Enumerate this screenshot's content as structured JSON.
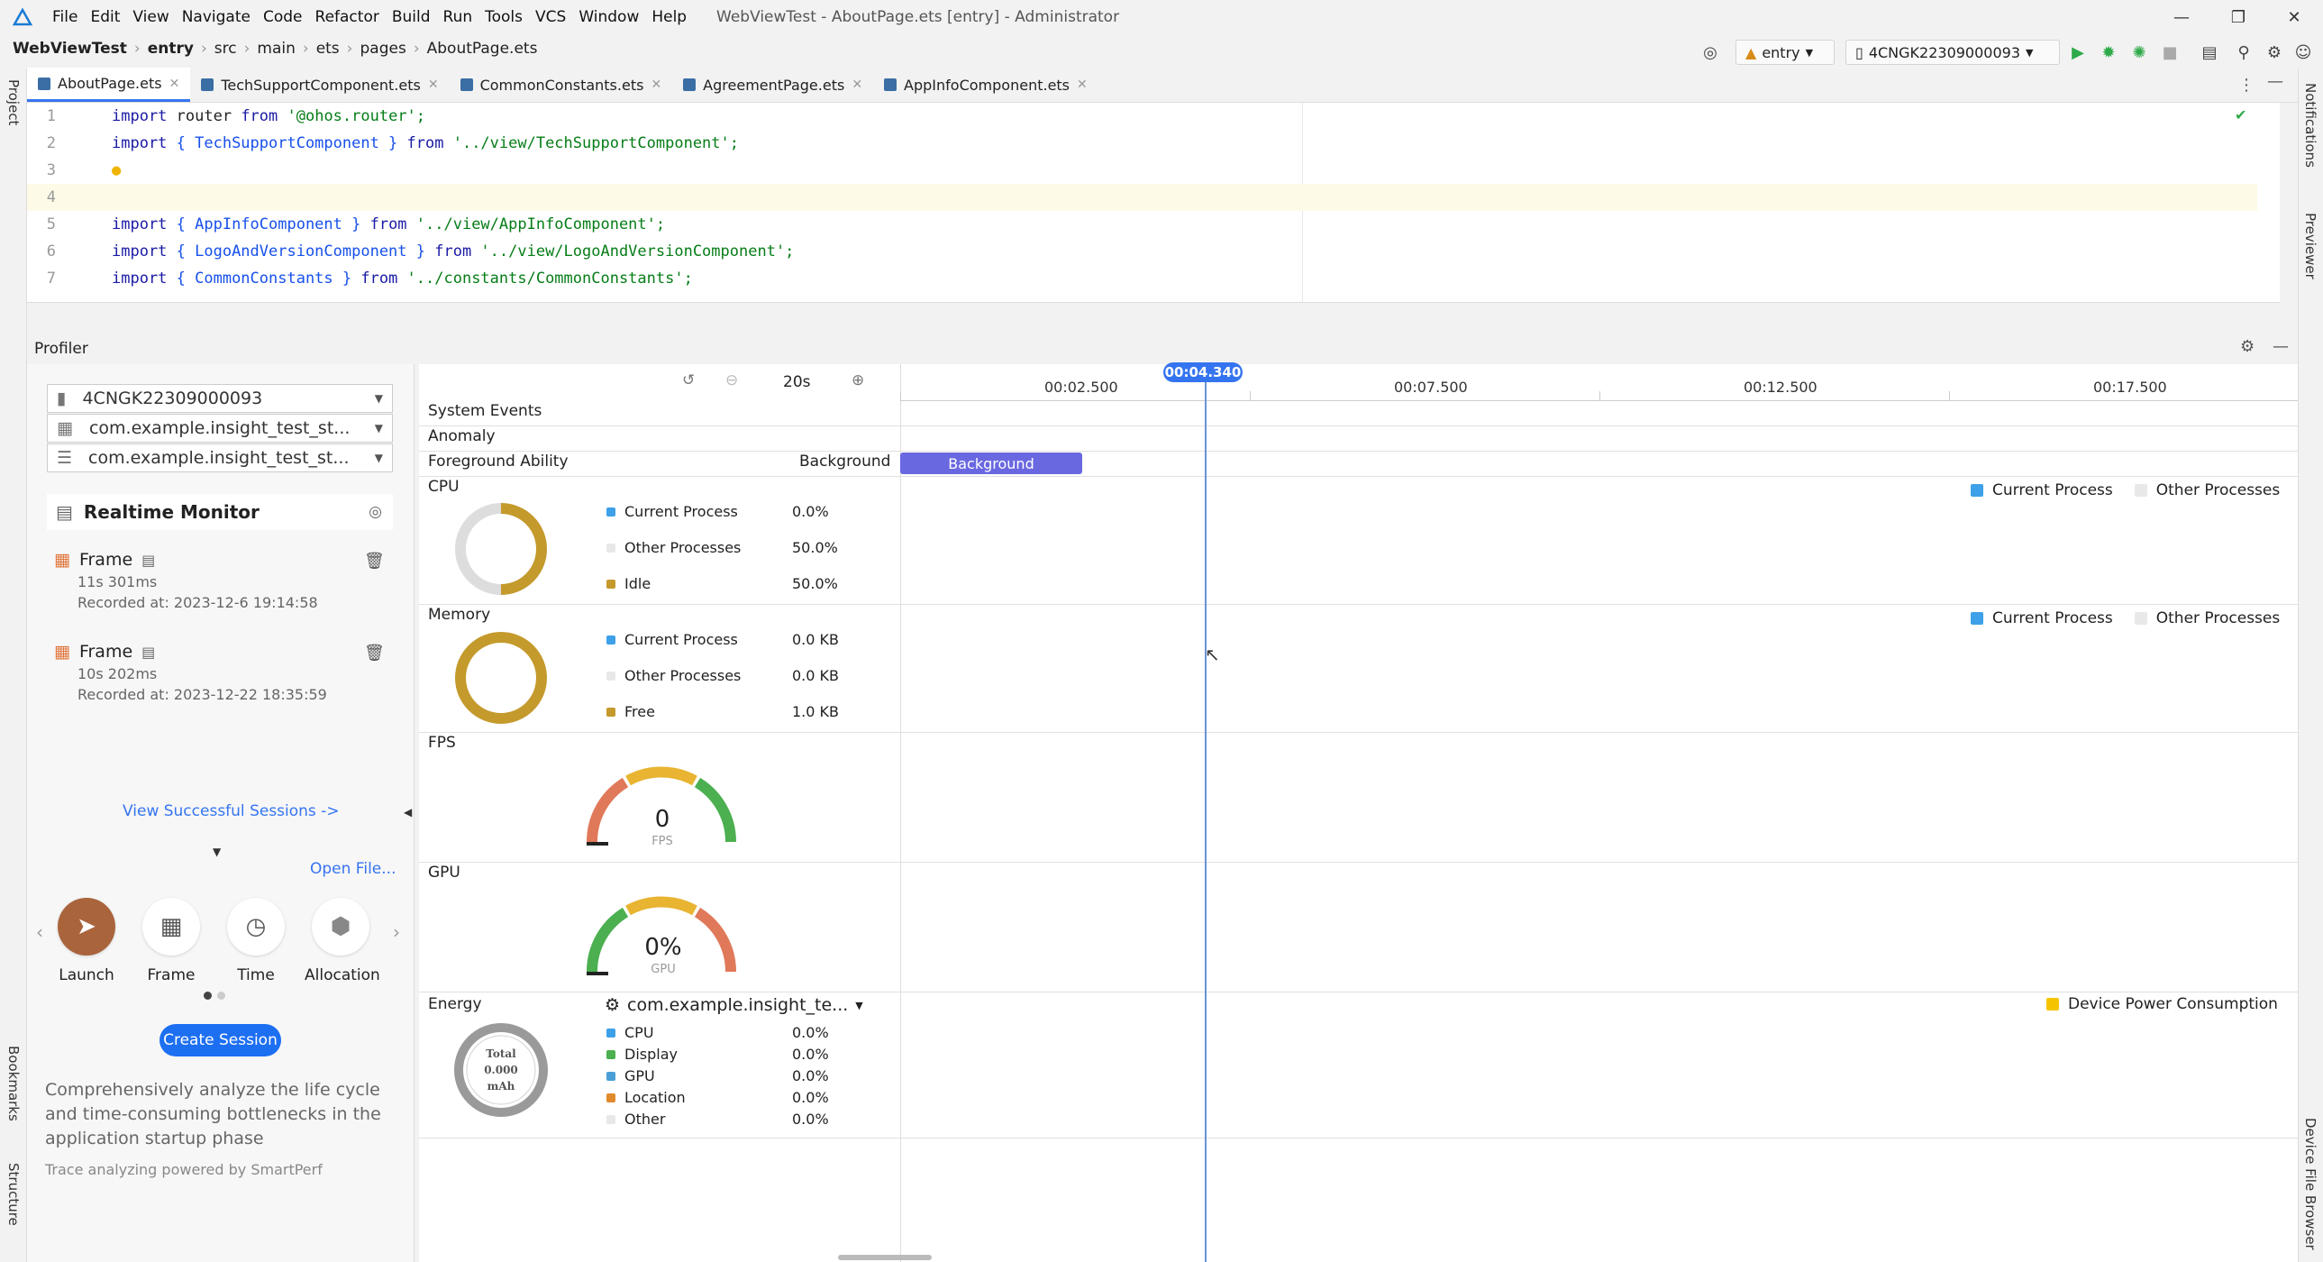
{
  "menubar": {
    "items": [
      "File",
      "Edit",
      "View",
      "Navigate",
      "Code",
      "Refactor",
      "Build",
      "Run",
      "Tools",
      "VCS",
      "Window",
      "Help"
    ],
    "title": "WebViewTest - AboutPage.ets [entry] - Administrator"
  },
  "breadcrumb": [
    "WebViewTest",
    "entry",
    "src",
    "main",
    "ets",
    "pages",
    "AboutPage.ets"
  ],
  "toolbar": {
    "module": "entry",
    "device": "4CNGK22309000093"
  },
  "side_left": {
    "project": "Project",
    "bookmarks": "Bookmarks",
    "structure": "Structure"
  },
  "side_right": {
    "notifications": "Notifications",
    "previewer": "Previewer",
    "device_file_browser": "Device File Browser"
  },
  "tabs": [
    "AboutPage.ets",
    "TechSupportComponent.ets",
    "CommonConstants.ets",
    "AgreementPage.ets",
    "AppInfoComponent.ets"
  ],
  "editor": {
    "line_numbers": [
      "1",
      "2",
      "3",
      "4",
      "5",
      "6",
      "7"
    ],
    "lines": [
      {
        "kw": "import",
        "a": " router ",
        "kw2": "from",
        "s": " '@ohos.router';"
      },
      {
        "kw": "import",
        "a": " { TechSupportComponent } ",
        "kw2": "from",
        "s": " '../view/TechSupportComponent';"
      },
      {
        "kw": "",
        "a": "",
        "kw2": "",
        "s": ""
      },
      {
        "kw": "",
        "a": "",
        "kw2": "",
        "s": ""
      },
      {
        "kw": "import",
        "a": " { AppInfoComponent } ",
        "kw2": "from",
        "s": " '../view/AppInfoComponent';"
      },
      {
        "kw": "import",
        "a": " { LogoAndVersionComponent } ",
        "kw2": "from",
        "s": " '../view/LogoAndVersionComponent';"
      },
      {
        "kw": "import",
        "a": " { CommonConstants } ",
        "kw2": "from",
        "s": " '../constants/CommonConstants';"
      }
    ]
  },
  "profiler": {
    "title": "Profiler",
    "selectors": [
      "4CNGK22309000093",
      "com.example.insight_test_st...",
      "com.example.insight_test_st..."
    ],
    "realtime_monitor": "Realtime Monitor",
    "recordings": [
      {
        "name": "Frame",
        "duration": "11s 301ms",
        "recorded": "Recorded at: 2023-12-6 19:14:58"
      },
      {
        "name": "Frame",
        "duration": "10s 202ms",
        "recorded": "Recorded at: 2023-12-22 18:35:59"
      }
    ],
    "view_sessions": "View Successful Sessions ->",
    "open_file": "Open File...",
    "tools": [
      "Launch",
      "Frame",
      "Time",
      "Allocation"
    ],
    "create_session": "Create Session",
    "description": "Comprehensively analyze the life cycle and time-consuming bottlenecks in the application startup phase",
    "powered": "Trace analyzing powered by SmartPerf",
    "zoom": "20s",
    "ticks": [
      "00:02.500",
      "00:07.500",
      "00:12.500",
      "00:17.500"
    ],
    "cursor_time": "00:04.340",
    "rows": {
      "system_events": "System Events",
      "anomaly": "Anomaly",
      "foreground_ability": "Foreground Ability",
      "foreground_state": "Background",
      "bar_label": "Background"
    },
    "cpu": {
      "label": "CPU",
      "items": [
        {
          "name": "Current Process",
          "value": "0.0%",
          "color": "#3ea0e8"
        },
        {
          "name": "Other Processes",
          "value": "50.0%",
          "color": "#dddddd"
        },
        {
          "name": "Idle",
          "value": "50.0%",
          "color": "#c49a2c"
        }
      ]
    },
    "memory": {
      "label": "Memory",
      "items": [
        {
          "name": "Current Process",
          "value": "0.0 KB",
          "color": "#3ea0e8"
        },
        {
          "name": "Other Processes",
          "value": "0.0 KB",
          "color": "#dddddd"
        },
        {
          "name": "Free",
          "value": "1.0 KB",
          "color": "#c49a2c"
        }
      ]
    },
    "fps": {
      "label": "FPS",
      "value": "0",
      "unit": "FPS"
    },
    "gpu": {
      "label": "GPU",
      "value": "0%",
      "unit": "GPU"
    },
    "energy": {
      "label": "Energy",
      "process": "com.example.insight_te...",
      "total_label": "Total",
      "total_value": "0.000",
      "total_unit": "mAh",
      "items": [
        {
          "name": "CPU",
          "value": "0.0%",
          "color": "#3ea0e8"
        },
        {
          "name": "Display",
          "value": "0.0%",
          "color": "#4caf50"
        },
        {
          "name": "GPU",
          "value": "0.0%",
          "color": "#4a9fd6"
        },
        {
          "name": "Location",
          "value": "0.0%",
          "color": "#e08a2c"
        },
        {
          "name": "Other",
          "value": "0.0%",
          "color": "#dddddd"
        }
      ]
    },
    "legend_current": "Current Process",
    "legend_other": "Other Processes",
    "legend_power": "Device Power Consumption"
  }
}
